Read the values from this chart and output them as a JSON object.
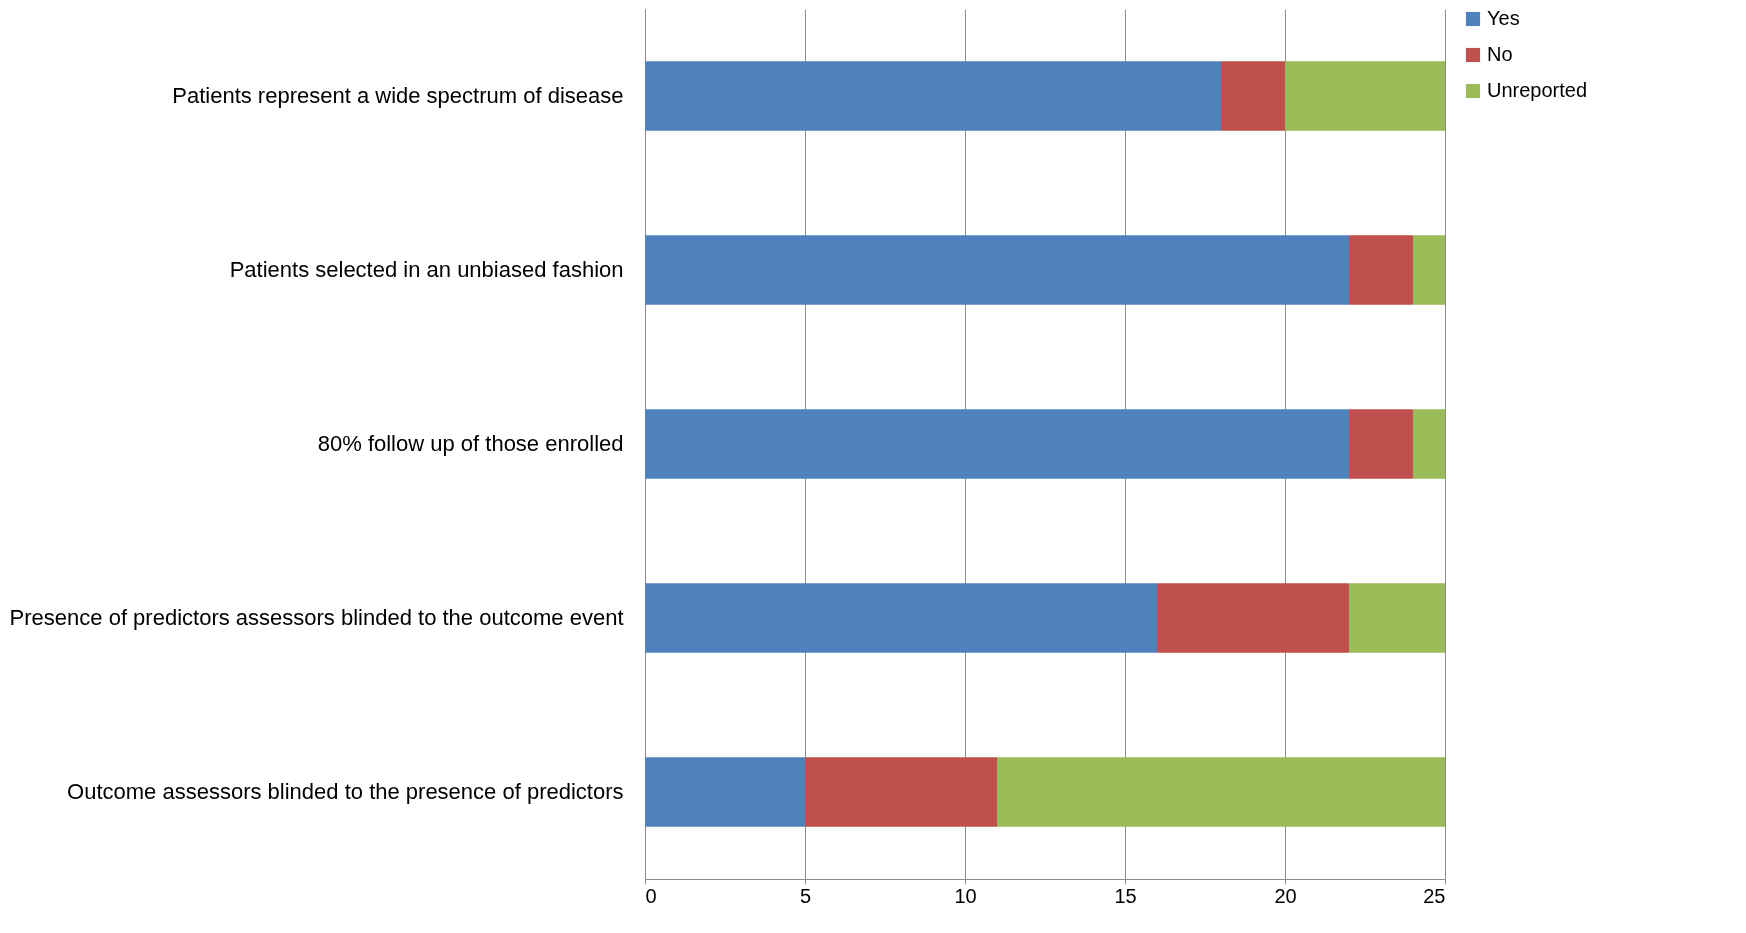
{
  "chart_data": {
    "type": "bar",
    "orientation": "horizontal",
    "stacked": true,
    "categories": [
      "Patients represent a wide spectrum of disease",
      "Patients selected in an unbiased fashion",
      "80% follow up of those enrolled",
      "Presence of predictors assessors blinded to the outcome event",
      "Outcome assessors blinded to the presence of predictors"
    ],
    "series": [
      {
        "name": "Yes",
        "color": "#4f81bd",
        "values": [
          18,
          22,
          22,
          16,
          5
        ]
      },
      {
        "name": "No",
        "color": "#c0504d",
        "values": [
          2,
          2,
          2,
          6,
          6
        ]
      },
      {
        "name": "Unreported",
        "color": "#9bbb59",
        "values": [
          5,
          1,
          1,
          3,
          14
        ]
      }
    ],
    "xlim": [
      0,
      25
    ],
    "xticks": [
      0,
      5,
      10,
      15,
      20,
      25
    ],
    "grid": "x",
    "legend": "right"
  }
}
